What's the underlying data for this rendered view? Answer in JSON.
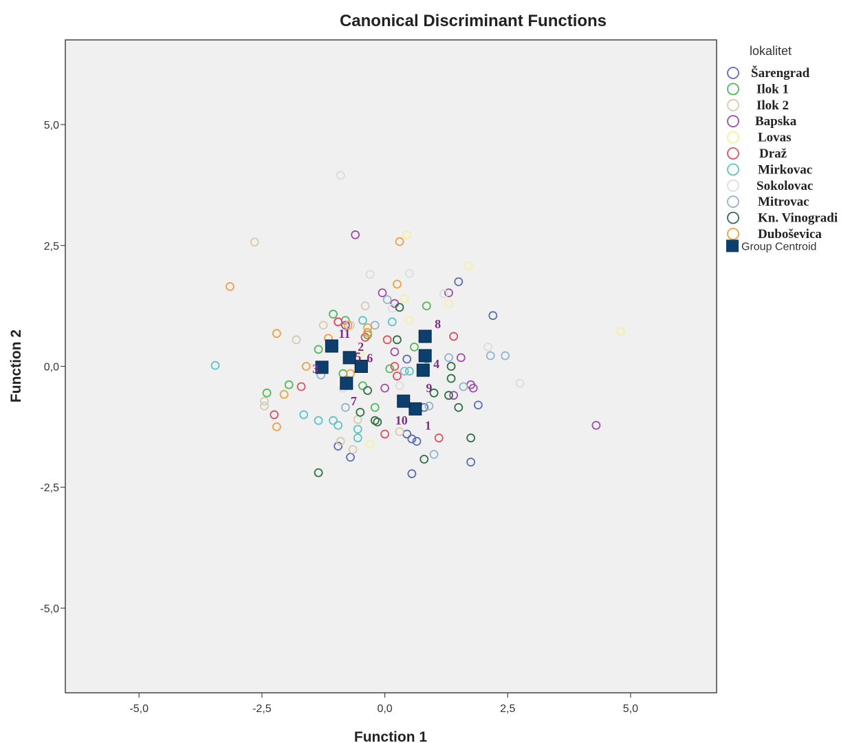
{
  "chart_data": {
    "type": "scatter",
    "title": "Canonical Discriminant Functions",
    "xlabel": "Function 1",
    "ylabel": "Function 2",
    "xlim": [
      -6.5,
      6.75
    ],
    "ylim": [
      -6.75,
      6.75
    ],
    "xticks": [
      -5.0,
      -2.5,
      0.0,
      2.5,
      5.0
    ],
    "yticks": [
      5.0,
      2.5,
      0.0,
      -2.5,
      -5.0
    ],
    "xtick_labels": [
      "-5,0",
      "-2,5",
      "0,0",
      "2,5",
      "5,0"
    ],
    "ytick_labels": [
      "5,0",
      "2,5",
      "0,0",
      "-2,5",
      "-5,0"
    ],
    "grid": false,
    "plot_background": "#f0f0f0",
    "legend": {
      "title": "lokalitet",
      "position": "right",
      "centroid_label": "Group Centroid",
      "centroid_color": "#0d3f6e"
    },
    "series": [
      {
        "name": "Šarengrad",
        "color": "#5a6db5",
        "points": [
          [
            0.45,
            -1.4
          ],
          [
            0.55,
            -1.5
          ],
          [
            0.65,
            -1.55
          ],
          [
            0.55,
            -2.22
          ],
          [
            0.45,
            0.15
          ],
          [
            1.75,
            -1.98
          ],
          [
            1.5,
            1.75
          ],
          [
            2.2,
            1.05
          ],
          [
            -0.7,
            -1.88
          ],
          [
            -0.95,
            -1.65
          ],
          [
            1.9,
            -0.8
          ],
          [
            0.8,
            -0.85
          ]
        ]
      },
      {
        "name": "Ilok 1",
        "color": "#4fb85a",
        "points": [
          [
            -1.05,
            1.08
          ],
          [
            -1.35,
            0.35
          ],
          [
            -0.85,
            -0.15
          ],
          [
            -1.95,
            -0.38
          ],
          [
            -2.4,
            -0.55
          ],
          [
            -0.45,
            -0.4
          ],
          [
            0.6,
            0.4
          ],
          [
            0.85,
            1.25
          ],
          [
            -0.8,
            0.95
          ],
          [
            0.1,
            -0.05
          ],
          [
            -0.2,
            -0.85
          ],
          [
            -0.35,
            0.65
          ]
        ]
      },
      {
        "name": "Ilok 2",
        "color": "#d7cbb0",
        "points": [
          [
            -2.65,
            2.57
          ],
          [
            -1.8,
            0.55
          ],
          [
            -2.45,
            -0.72
          ],
          [
            -2.45,
            -0.82
          ],
          [
            -0.9,
            -1.55
          ],
          [
            -0.55,
            -1.1
          ],
          [
            -0.4,
            1.25
          ],
          [
            -0.7,
            0.85
          ],
          [
            -1.25,
            0.85
          ],
          [
            0.3,
            -1.35
          ],
          [
            -0.65,
            -1.72
          ]
        ]
      },
      {
        "name": "Bapska",
        "color": "#9d4ea8",
        "points": [
          [
            -0.6,
            2.72
          ],
          [
            -0.05,
            1.52
          ],
          [
            0.2,
            1.3
          ],
          [
            1.3,
            1.52
          ],
          [
            1.55,
            0.18
          ],
          [
            1.75,
            -0.38
          ],
          [
            1.8,
            -0.45
          ],
          [
            1.4,
            -0.6
          ],
          [
            4.3,
            -1.22
          ],
          [
            0.2,
            0.3
          ],
          [
            -0.95,
            0.92
          ],
          [
            -0.8,
            0.85
          ],
          [
            0.0,
            -0.45
          ]
        ]
      },
      {
        "name": "Lovas",
        "color": "#f5f0a0",
        "points": [
          [
            0.45,
            2.72
          ],
          [
            1.7,
            2.08
          ],
          [
            4.8,
            0.72
          ],
          [
            0.5,
            0.95
          ],
          [
            0.4,
            1.4
          ],
          [
            -0.3,
            -1.6
          ],
          [
            -0.5,
            0.25
          ],
          [
            1.3,
            1.3
          ]
        ]
      },
      {
        "name": "Draž",
        "color": "#e0505e",
        "points": [
          [
            -2.25,
            -1.0
          ],
          [
            -1.7,
            -0.42
          ],
          [
            0.05,
            0.55
          ],
          [
            0.2,
            0.0
          ],
          [
            1.4,
            0.62
          ],
          [
            1.1,
            -1.48
          ],
          [
            0.0,
            -1.4
          ],
          [
            -0.95,
            0.92
          ],
          [
            0.25,
            -0.2
          ],
          [
            -0.4,
            0.6
          ]
        ]
      },
      {
        "name": "Mirkovac",
        "color": "#5bc4c4",
        "points": [
          [
            -3.45,
            0.02
          ],
          [
            -1.65,
            -1.0
          ],
          [
            -1.35,
            -1.12
          ],
          [
            -1.05,
            -1.12
          ],
          [
            -0.95,
            -1.22
          ],
          [
            -0.55,
            -1.3
          ],
          [
            -0.55,
            -1.48
          ],
          [
            0.15,
            0.92
          ],
          [
            0.85,
            0.15
          ],
          [
            -0.45,
            0.95
          ],
          [
            0.5,
            -0.1
          ]
        ]
      },
      {
        "name": "Sokolovac",
        "color": "#dcdcdc",
        "points": [
          [
            -0.9,
            3.95
          ],
          [
            -0.3,
            1.9
          ],
          [
            0.5,
            1.92
          ],
          [
            2.1,
            0.4
          ],
          [
            2.75,
            -0.35
          ],
          [
            0.8,
            0.6
          ],
          [
            1.2,
            1.5
          ],
          [
            0.15,
            1.2
          ],
          [
            -0.85,
            -0.45
          ],
          [
            0.3,
            -0.4
          ]
        ]
      },
      {
        "name": "Mitrovac",
        "color": "#93b2cc",
        "points": [
          [
            2.15,
            0.22
          ],
          [
            2.45,
            0.22
          ],
          [
            1.3,
            0.18
          ],
          [
            1.0,
            -1.82
          ],
          [
            0.9,
            -0.82
          ],
          [
            -0.2,
            0.85
          ],
          [
            -0.8,
            -0.85
          ],
          [
            -1.3,
            -0.18
          ],
          [
            0.05,
            1.38
          ],
          [
            0.4,
            -0.1
          ],
          [
            1.6,
            -0.42
          ]
        ]
      },
      {
        "name": "Kn. Vinogradi",
        "color": "#2d6e47",
        "points": [
          [
            -1.35,
            -2.2
          ],
          [
            -0.15,
            -1.15
          ],
          [
            -0.2,
            -1.12
          ],
          [
            -0.5,
            -0.95
          ],
          [
            0.8,
            -1.92
          ],
          [
            1.75,
            -1.48
          ],
          [
            1.5,
            -0.85
          ],
          [
            1.35,
            -0.25
          ],
          [
            1.35,
            0.0
          ],
          [
            0.3,
            1.22
          ],
          [
            0.25,
            0.55
          ],
          [
            -0.35,
            -0.5
          ],
          [
            1.0,
            -0.55
          ],
          [
            1.3,
            -0.6
          ]
        ]
      },
      {
        "name": "Duboševica",
        "color": "#f0a040",
        "points": [
          [
            -3.15,
            1.65
          ],
          [
            -2.2,
            0.68
          ],
          [
            -2.05,
            -0.58
          ],
          [
            -2.2,
            -1.25
          ],
          [
            0.3,
            2.58
          ],
          [
            0.25,
            1.7
          ],
          [
            -1.15,
            0.58
          ],
          [
            -0.7,
            -0.15
          ],
          [
            -1.6,
            0.0
          ],
          [
            -0.75,
            0.85
          ],
          [
            -0.35,
            0.8
          ],
          [
            -0.35,
            0.7
          ]
        ]
      }
    ],
    "centroids": [
      {
        "label": "1",
        "x": 0.62,
        "y": -0.88
      },
      {
        "label": "2",
        "x": -0.72,
        "y": 0.18
      },
      {
        "label": "3",
        "x": -1.28,
        "y": -0.02
      },
      {
        "label": "4",
        "x": 0.82,
        "y": 0.22
      },
      {
        "label": "5",
        "x": -0.48,
        "y": 0.0
      },
      {
        "label": "6",
        "x": -0.48,
        "y": 0.0
      },
      {
        "label": "7",
        "x": -0.78,
        "y": -0.35
      },
      {
        "label": "8",
        "x": 0.82,
        "y": 0.62
      },
      {
        "label": "9",
        "x": 0.78,
        "y": -0.08
      },
      {
        "label": "10",
        "x": 0.38,
        "y": -0.72
      },
      {
        "label": "11",
        "x": -1.08,
        "y": 0.42
      }
    ]
  }
}
